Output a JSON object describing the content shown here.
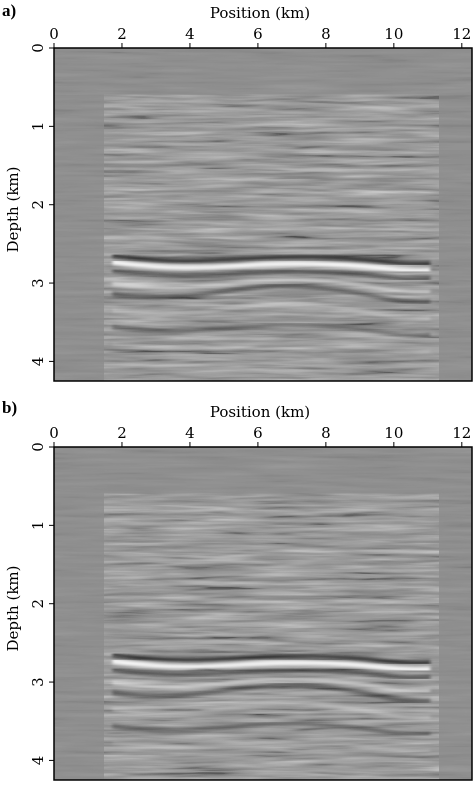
{
  "chart_data": [
    {
      "type": "image",
      "panel_label": "a)",
      "xlabel": "Position (km)",
      "ylabel": "Depth (km)",
      "xlim": [
        0,
        12.3
      ],
      "ylim": [
        0,
        4.25
      ],
      "xticks": [
        0,
        2,
        4,
        6,
        8,
        10,
        12
      ],
      "yticks": [
        0,
        1,
        2,
        3,
        4
      ],
      "xaxis_position": "top",
      "y_inverted": true
    },
    {
      "type": "image",
      "panel_label": "b)",
      "xlabel": "Position (km)",
      "ylabel": "Depth (km)",
      "xlim": [
        0,
        12.3
      ],
      "ylim": [
        0,
        4.25
      ],
      "xticks": [
        0,
        2,
        4,
        6,
        8,
        10,
        12
      ],
      "yticks": [
        0,
        1,
        2,
        3,
        4
      ],
      "xaxis_position": "top",
      "y_inverted": true
    }
  ]
}
